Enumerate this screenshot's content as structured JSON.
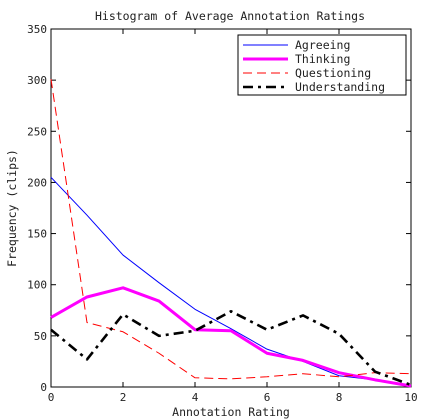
{
  "chart_data": {
    "type": "line",
    "title": "Histogram of Average Annotation Ratings",
    "xlabel": "Annotation Rating",
    "ylabel": "Frequency (clips)",
    "xlim": [
      0,
      10
    ],
    "ylim": [
      0,
      350
    ],
    "xticks": [
      0,
      2,
      4,
      6,
      8,
      10
    ],
    "yticks": [
      0,
      50,
      100,
      150,
      200,
      250,
      300,
      350
    ],
    "grid": false,
    "legend_position": "top-right",
    "x": [
      0,
      1,
      2,
      3,
      4,
      5,
      6,
      7,
      8,
      9,
      10
    ],
    "series": [
      {
        "name": "Agreeing",
        "values": [
          205,
          168,
          129,
          102,
          76,
          57,
          37,
          25,
          11,
          7,
          1
        ],
        "color": "#0000ff",
        "style": "solid"
      },
      {
        "name": "Thinking",
        "values": [
          68,
          88,
          97,
          84,
          56,
          55,
          33,
          26,
          14,
          7,
          1
        ],
        "color": "#ff00ff",
        "style": "thick-solid"
      },
      {
        "name": "Questioning",
        "values": [
          301,
          63,
          54,
          33,
          9,
          8,
          10,
          13,
          10,
          14,
          13
        ],
        "color": "#ff0000",
        "style": "dashed"
      },
      {
        "name": "Understanding",
        "values": [
          56,
          27,
          71,
          50,
          55,
          74,
          56,
          70,
          52,
          15,
          2
        ],
        "color": "#000000",
        "style": "dash-dot"
      }
    ]
  }
}
